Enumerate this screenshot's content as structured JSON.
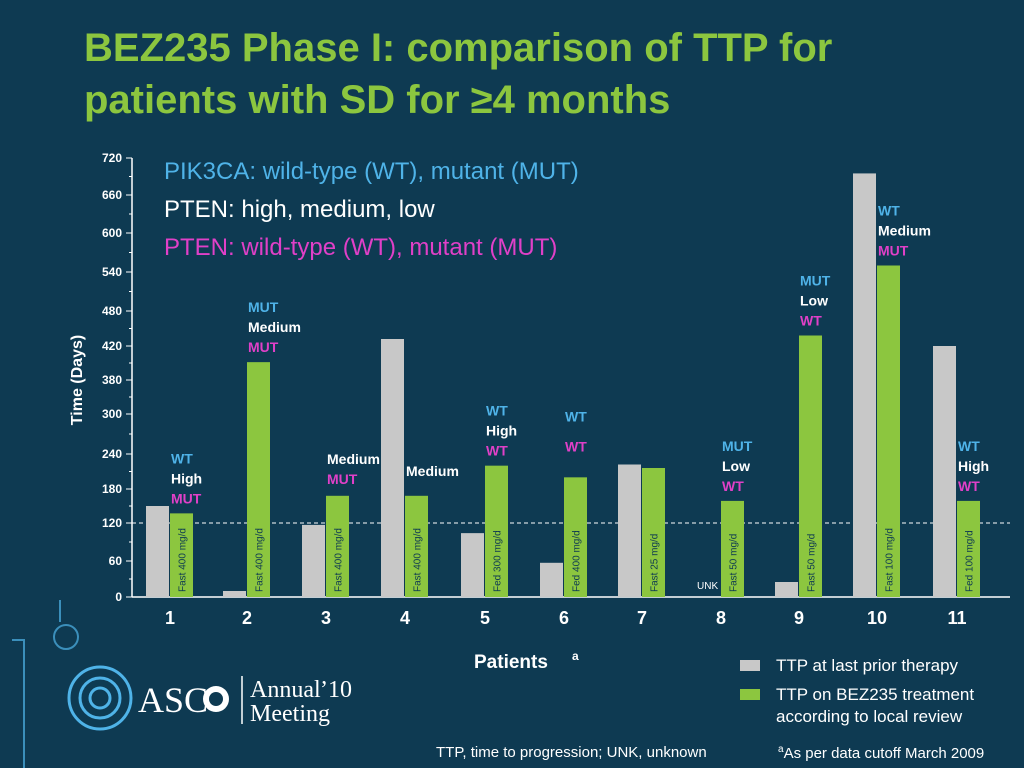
{
  "title": "BEZ235 Phase I: comparison of TTP for patients with SD for ≥4 months",
  "key_lines": [
    {
      "text": "PIK3CA: wild-type (WT), mutant (MUT)",
      "color": "#4fb3e8"
    },
    {
      "text": "PTEN: high, medium, low",
      "color": "#ffffff"
    },
    {
      "text": "PTEN: wild-type (WT), mutant (MUT)",
      "color": "#e040c8"
    }
  ],
  "colors": {
    "prior": "#c8c8c8",
    "treatment": "#8cc63f",
    "pik3ca": "#4fb3e8",
    "pten_level": "#ffffff",
    "pten_status": "#e040c8",
    "background": "#0e3a52"
  },
  "chart_data": {
    "type": "bar",
    "title": "",
    "xlabel": "Patients",
    "xlabel_superscript": "a",
    "ylabel": "Time (Days)",
    "y_ticks": [
      0,
      60,
      120,
      180,
      240,
      300,
      380,
      420,
      480,
      540,
      600,
      660,
      720
    ],
    "ylim": [
      0,
      720
    ],
    "reference_line": 120,
    "categories": [
      "1",
      "2",
      "3",
      "4",
      "5",
      "6",
      "7",
      "8",
      "9",
      "10",
      "11"
    ],
    "series": [
      {
        "name": "TTP at last prior therapy",
        "color": "#c8c8c8",
        "values": [
          150,
          10,
          117,
          432,
          104,
          57,
          222,
          null,
          25,
          695,
          420
        ]
      },
      {
        "name": "TTP on BEZ235 treatment according to local review",
        "color": "#8cc63f",
        "values": [
          137,
          401,
          168,
          168,
          220,
          200,
          216,
          159,
          438,
          550,
          159
        ]
      }
    ],
    "dose_labels": [
      "Fast 400 mg/d",
      "Fast 400 mg/d",
      "Fast 400 mg/d",
      "Fast 400 mg/d",
      "Fed 300 mg/d",
      "Fed 400 mg/d",
      "Fast 25 mg/d",
      "Fast 50 mg/d",
      "Fast 50 mg/d",
      "Fast 100 mg/d",
      "Fed 100 mg/d"
    ],
    "unk_label": "UNK",
    "annotations": [
      {
        "patient": 1,
        "pik3ca": "WT",
        "pten_level": "High",
        "pten_status": "MUT"
      },
      {
        "patient": 2,
        "pik3ca": "MUT",
        "pten_level": "Medium",
        "pten_status": "MUT"
      },
      {
        "patient": 3,
        "pik3ca": "",
        "pten_level": "Medium",
        "pten_status": "MUT"
      },
      {
        "patient": 4,
        "pik3ca": "",
        "pten_level": "Medium",
        "pten_status": ""
      },
      {
        "patient": 5,
        "pik3ca": "WT",
        "pten_level": "High",
        "pten_status": "WT"
      },
      {
        "patient": 6,
        "pik3ca": "WT",
        "pten_level": "",
        "pten_status": "WT"
      },
      {
        "patient": 7,
        "pik3ca": "",
        "pten_level": "",
        "pten_status": ""
      },
      {
        "patient": 8,
        "pik3ca": "MUT",
        "pten_level": "Low",
        "pten_status": "WT"
      },
      {
        "patient": 9,
        "pik3ca": "MUT",
        "pten_level": "Low",
        "pten_status": "WT"
      },
      {
        "patient": 10,
        "pik3ca": "WT",
        "pten_level": "Medium",
        "pten_status": "MUT"
      },
      {
        "patient": 11,
        "pik3ca": "WT",
        "pten_level": "High",
        "pten_status": "WT"
      }
    ]
  },
  "legend": {
    "prior_label": "TTP at last prior therapy",
    "treatment_label_line1": "TTP on BEZ235 treatment",
    "treatment_label_line2": "according to local review"
  },
  "footer": {
    "abbreviations": "TTP, time to progression; UNK, unknown",
    "note_superscript": "a",
    "note": "As per data cutoff March 2009"
  },
  "logo": {
    "asco_text": "ASC",
    "annual_text": "Annual",
    "year_text": "’10",
    "meeting_text": "Meeting"
  }
}
